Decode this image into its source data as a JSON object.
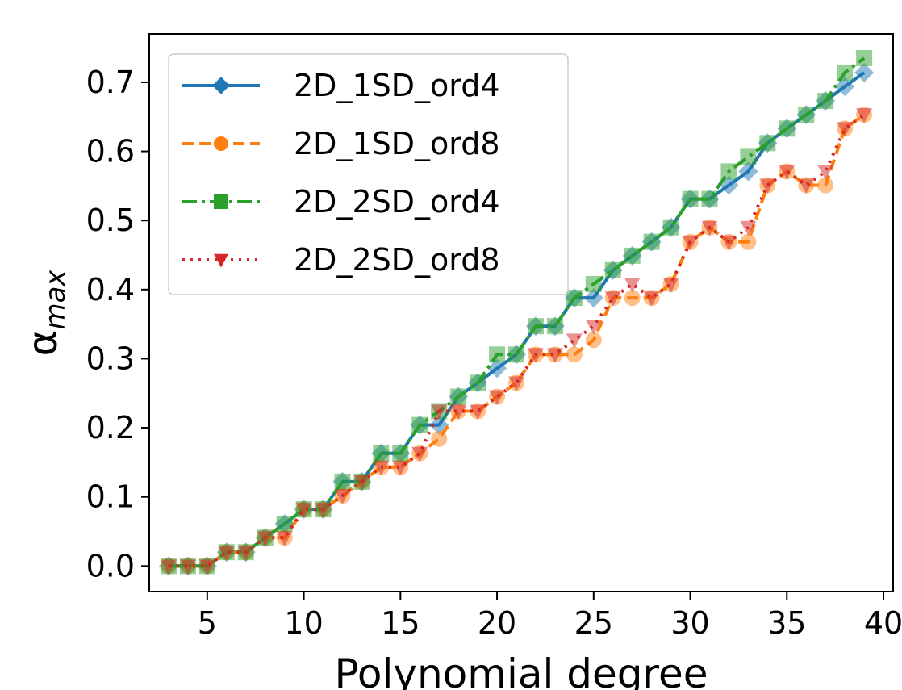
{
  "chart_data": {
    "type": "line",
    "xlabel": "Polynomial degree",
    "ylabel": "α",
    "ylabel_sub": "max",
    "xlim": [
      2,
      40.5
    ],
    "ylim": [
      -0.037,
      0.77
    ],
    "xticks": [
      "5",
      "10",
      "15",
      "20",
      "25",
      "30",
      "35",
      "40"
    ],
    "yticks": [
      "0.0",
      "0.1",
      "0.2",
      "0.3",
      "0.4",
      "0.5",
      "0.6",
      "0.7"
    ],
    "legend_position": "top-left",
    "grid": false,
    "x": [
      3,
      4,
      5,
      6,
      7,
      8,
      9,
      10,
      11,
      12,
      13,
      14,
      15,
      16,
      17,
      18,
      19,
      20,
      21,
      22,
      23,
      24,
      25,
      26,
      27,
      28,
      29,
      30,
      31,
      32,
      33,
      34,
      35,
      36,
      37,
      38,
      39
    ],
    "series": [
      {
        "name": "2D_1SD_ord4",
        "color": "#1f77b4",
        "marker": "diamond",
        "linestyle": "solid",
        "values": [
          0.0,
          0.0,
          0.0,
          0.02,
          0.02,
          0.041,
          0.061,
          0.082,
          0.082,
          0.122,
          0.122,
          0.163,
          0.163,
          0.204,
          0.204,
          0.245,
          0.265,
          0.286,
          0.306,
          0.347,
          0.347,
          0.388,
          0.388,
          0.428,
          0.449,
          0.469,
          0.49,
          0.531,
          0.531,
          0.551,
          0.571,
          0.612,
          0.633,
          0.653,
          0.673,
          0.694,
          0.714
        ]
      },
      {
        "name": "2D_1SD_ord8",
        "color": "#ff7f0e",
        "marker": "circle",
        "linestyle": "dashed",
        "values": [
          0.0,
          0.0,
          0.0,
          0.02,
          0.02,
          0.041,
          0.041,
          0.082,
          0.082,
          0.102,
          0.122,
          0.143,
          0.143,
          0.163,
          0.184,
          0.224,
          0.224,
          0.245,
          0.265,
          0.306,
          0.306,
          0.306,
          0.327,
          0.388,
          0.388,
          0.388,
          0.408,
          0.469,
          0.49,
          0.469,
          0.469,
          0.551,
          0.571,
          0.551,
          0.551,
          0.633,
          0.653
        ]
      },
      {
        "name": "2D_2SD_ord4",
        "color": "#2ca02c",
        "marker": "square",
        "linestyle": "dashdot",
        "values": [
          0.0,
          0.0,
          0.0,
          0.02,
          0.02,
          0.041,
          0.061,
          0.082,
          0.082,
          0.122,
          0.122,
          0.163,
          0.163,
          0.204,
          0.224,
          0.245,
          0.265,
          0.306,
          0.306,
          0.347,
          0.347,
          0.388,
          0.408,
          0.428,
          0.449,
          0.469,
          0.49,
          0.531,
          0.531,
          0.571,
          0.592,
          0.612,
          0.633,
          0.653,
          0.673,
          0.714,
          0.735
        ]
      },
      {
        "name": "2D_2SD_ord8",
        "color": "#d62728",
        "marker": "triangle-down",
        "linestyle": "dotted",
        "values": [
          0.0,
          0.0,
          0.0,
          0.02,
          0.02,
          0.041,
          0.041,
          0.082,
          0.082,
          0.102,
          0.122,
          0.143,
          0.143,
          0.163,
          0.224,
          0.224,
          0.224,
          0.245,
          0.265,
          0.306,
          0.306,
          0.327,
          0.347,
          0.388,
          0.408,
          0.388,
          0.408,
          0.469,
          0.49,
          0.469,
          0.49,
          0.551,
          0.571,
          0.551,
          0.571,
          0.633,
          0.653
        ]
      }
    ]
  }
}
